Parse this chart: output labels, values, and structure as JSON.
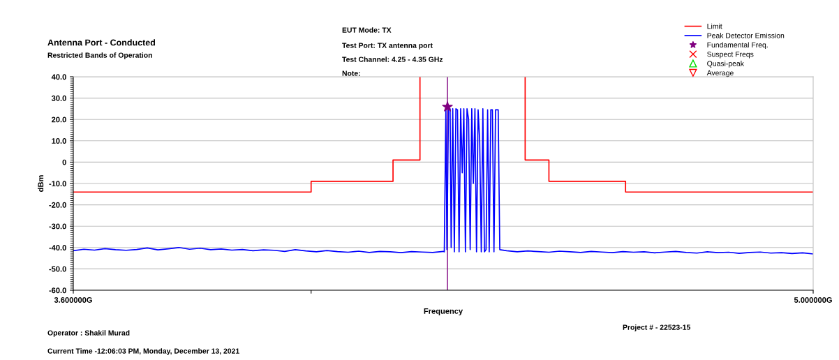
{
  "chart_data": {
    "type": "line",
    "title": "Antenna Port - Conducted",
    "subtitle": "Restricted Bands of Operation",
    "xlabel": "Frequency",
    "ylabel": "dBm",
    "annotations": [
      "EUT Mode: TX",
      "Test Port: TX antenna port",
      "Test Channel: 4.25 - 4.35 GHz",
      "Note:",
      "Operator : Shakil Murad",
      "Current Time -12:06:03 PM, Monday, December 13, 2021",
      "Project # - 22523-15"
    ],
    "xlim": [
      3.6,
      5.0
    ],
    "xticks": [
      {
        "value": 3.6,
        "label": "3.600000G"
      },
      {
        "value": 4.05,
        "label": null
      },
      {
        "value": 5.0,
        "label": "5.000000G"
      }
    ],
    "ylim": [
      -60,
      40
    ],
    "yticks": [
      {
        "value": -60,
        "label": "-60.0"
      },
      {
        "value": -50,
        "label": "-50.0"
      },
      {
        "value": -40,
        "label": "-40.0"
      },
      {
        "value": -30,
        "label": "-30.0"
      },
      {
        "value": -20,
        "label": "-20.0"
      },
      {
        "value": -10,
        "label": "-10.0"
      },
      0,
      {
        "value": 10,
        "label": "10.0"
      },
      {
        "value": 20,
        "label": "20.0"
      },
      {
        "value": 30,
        "label": "30.0"
      },
      {
        "value": 40,
        "label": "40.0"
      }
    ],
    "grid": "y",
    "legend": "top right",
    "line_style": "solid",
    "series": [
      {
        "name": "Limit",
        "color": "#ff0000",
        "marker": "none",
        "x": [
          3.6,
          4.05,
          4.05,
          4.205,
          4.205,
          4.256,
          4.256,
          4.3,
          4.455,
          4.455,
          4.5,
          4.5,
          4.645,
          4.645,
          5.0
        ],
        "values": [
          -14,
          -14,
          -9,
          -9,
          1,
          1,
          40,
          null,
          40,
          1,
          1,
          -9,
          -9,
          -14,
          -14
        ]
      },
      {
        "name": "Peak Detector Emission",
        "color": "#0000ff",
        "marker": "none",
        "x": [
          3.6,
          3.62,
          3.64,
          3.66,
          3.68,
          3.7,
          3.72,
          3.74,
          3.76,
          3.78,
          3.8,
          3.82,
          3.84,
          3.86,
          3.88,
          3.9,
          3.92,
          3.94,
          3.96,
          3.98,
          4.0,
          4.02,
          4.04,
          4.06,
          4.08,
          4.1,
          4.12,
          4.14,
          4.16,
          4.18,
          4.2,
          4.22,
          4.24,
          4.26,
          4.28,
          4.3,
          4.302,
          4.305,
          4.307,
          4.31,
          4.313,
          4.315,
          4.318,
          4.321,
          4.324,
          4.327,
          4.33,
          4.333,
          4.336,
          4.339,
          4.342,
          4.345,
          4.348,
          4.351,
          4.354,
          4.357,
          4.36,
          4.363,
          4.366,
          4.369,
          4.372,
          4.375,
          4.378,
          4.381,
          4.384,
          4.387,
          4.39,
          4.393,
          4.396,
          4.399,
          4.404,
          4.407,
          4.42,
          4.44,
          4.46,
          4.48,
          4.5,
          4.52,
          4.54,
          4.56,
          4.58,
          4.6,
          4.62,
          4.64,
          4.66,
          4.68,
          4.7,
          4.72,
          4.74,
          4.76,
          4.78,
          4.8,
          4.82,
          4.84,
          4.86,
          4.88,
          4.9,
          4.92,
          4.94,
          4.96,
          4.98,
          5.0
        ],
        "values": [
          -41.5,
          -40.8,
          -41.2,
          -40.5,
          -41.0,
          -41.3,
          -40.9,
          -40.2,
          -41.1,
          -40.6,
          -40.0,
          -40.8,
          -40.3,
          -41.0,
          -40.7,
          -41.2,
          -40.9,
          -41.5,
          -41.1,
          -41.3,
          -41.8,
          -41.0,
          -41.6,
          -42.0,
          -41.4,
          -41.9,
          -42.2,
          -41.7,
          -42.3,
          -41.8,
          -42.0,
          -42.4,
          -41.9,
          -42.1,
          -42.3,
          -41.8,
          -42,
          25,
          -41,
          25.5,
          25,
          -40,
          25,
          -42,
          25,
          24.5,
          -42,
          25,
          -5,
          25,
          -42,
          25,
          20,
          -41,
          25,
          -10,
          25,
          -42,
          24.5,
          10,
          -42,
          25,
          -42,
          -41,
          24.5,
          -42,
          24.5,
          24.5,
          -42,
          24.5,
          24.5,
          -41,
          -41.5,
          -42.0,
          -41.6,
          -41.9,
          -42.2,
          -41.7,
          -42.0,
          -42.3,
          -41.8,
          -42.1,
          -42.4,
          -41.9,
          -42.2,
          -42.0,
          -42.5,
          -42.1,
          -41.8,
          -42.3,
          -42.6,
          -42.0,
          -42.4,
          -42.2,
          -42.7,
          -42.3,
          -42.1,
          -42.6,
          -42.4,
          -42.8,
          -42.5,
          -43.0
        ]
      },
      {
        "name": "Fundamental Freq.",
        "color": "#800080",
        "type": "scatter",
        "marker": "star",
        "x": [
          4.308
        ],
        "values": [
          25.9
        ]
      },
      {
        "name": "Suspect Freqs",
        "color": "#ff0000",
        "type": "scatter",
        "marker": "cross"
      },
      {
        "name": "Quasi-peak",
        "color": "#00dd00",
        "type": "scatter",
        "marker": "triangle"
      },
      {
        "name": "Average",
        "color": "#ff0000",
        "type": "scatter",
        "marker": "triangle_down"
      }
    ],
    "ref_lines": [
      {
        "axis": "x",
        "value": 4.308,
        "color": "#800080"
      }
    ]
  }
}
